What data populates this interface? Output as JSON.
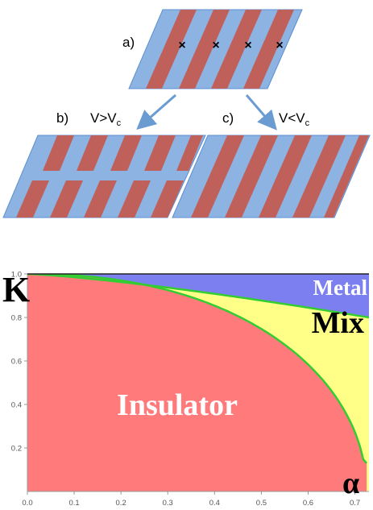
{
  "schematic": {
    "label_a": "a)",
    "label_b": "b)",
    "label_c": "c)",
    "cond_b_main": "V>V",
    "cond_b_sub": "c",
    "cond_c_main": "V<V",
    "cond_c_sub": "c",
    "cross_glyph": "×",
    "colors": {
      "blue": "#8db3e2",
      "blue_edge": "#5b8fd0",
      "red": "#c0605a",
      "arrow": "#6a9bd1"
    }
  },
  "phase_diagram": {
    "label_top_left": "K",
    "label_bottom_right": "α",
    "regions": [
      {
        "name": "Metal",
        "color": "#7b7ff0",
        "text_color": "#ffffff"
      },
      {
        "name": "Mix",
        "color": "#ffff88",
        "text_color": "#000000"
      },
      {
        "name": "Insulator",
        "color": "#ff7b7b",
        "text_color": "#ffffff"
      }
    ],
    "boundary_color": "#33cc33",
    "x_ticks": [
      "0.0",
      "0.1",
      "0.2",
      "0.3",
      "0.4",
      "0.5",
      "0.6",
      "0.7"
    ],
    "y_ticks": [
      "0.2",
      "0.4",
      "0.6",
      "0.8",
      "1.0"
    ],
    "xlim": [
      0,
      0.73
    ],
    "ylim": [
      0,
      1
    ]
  }
}
